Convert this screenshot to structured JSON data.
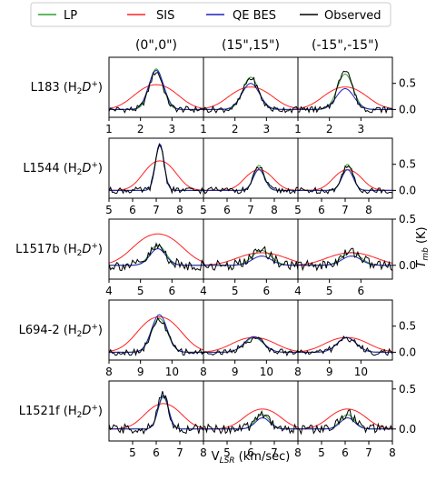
{
  "legend": [
    {
      "label": "LP",
      "color": "#2ca02c"
    },
    {
      "label": "SIS",
      "color": "#ff2020"
    },
    {
      "label": "QE BES",
      "color": "#1f1fbf"
    },
    {
      "label": "Observed",
      "color": "#000000"
    }
  ],
  "column_titles": [
    "(0\",0\")",
    "(15\",15\")",
    "(-15\",-15\")"
  ],
  "xlabel_main": "V",
  "xlabel_sub": "LSR",
  "xlabel_tail": " (km/sec)",
  "ylabel_main": "T",
  "ylabel_sub": "mb",
  "ylabel_tail": " (K)",
  "chart_data": [
    {
      "type": "line",
      "name": "L183 (H2D+)",
      "label_main": "L183 (H",
      "label_tail": "D",
      "label_close": ")",
      "xlim": [
        1,
        4
      ],
      "ylim": [
        -0.15,
        1.0
      ],
      "xticks": [
        1,
        2,
        3
      ],
      "yticks": [
        0.0,
        0.5
      ],
      "ytick_labels": [
        "0.0",
        "0.5"
      ],
      "series": [
        {
          "name": "LP",
          "color": "#2ca02c",
          "x": [
            2.5,
            2.5,
            2.5
          ],
          "y": [
            0.78,
            0.62,
            0.68
          ],
          "sigma": [
            0.22,
            0.25,
            0.25
          ]
        },
        {
          "name": "SIS",
          "color": "#ff2020",
          "x": [
            2.5,
            2.5,
            2.5
          ],
          "y": [
            0.42,
            0.38,
            0.38
          ],
          "sigma": [
            0.8,
            0.8,
            0.8
          ]
        },
        {
          "name": "QE BES",
          "color": "#1f1fbf",
          "x": [
            2.5,
            2.5,
            2.5
          ],
          "y": [
            0.75,
            0.5,
            0.4
          ],
          "sigma": [
            0.24,
            0.28,
            0.28
          ]
        },
        {
          "name": "Observed",
          "color": "#000000",
          "x": [
            2.5,
            2.5,
            2.5
          ],
          "y": [
            0.72,
            0.6,
            0.78
          ],
          "sigma": [
            0.22,
            0.24,
            0.22
          ]
        }
      ]
    },
    {
      "type": "line",
      "name": "L1544 (H2D+)",
      "label_main": "L1544 (H",
      "label_tail": "D",
      "label_close": ")",
      "xlim": [
        5,
        9
      ],
      "ylim": [
        -0.15,
        1.0
      ],
      "xticks": [
        5,
        6,
        7,
        8
      ],
      "yticks": [
        0.0,
        0.5
      ],
      "ytick_labels": [
        "0.0",
        "0.5"
      ],
      "series": [
        {
          "name": "LP",
          "color": "#2ca02c",
          "x": [
            7.15,
            7.35,
            7.1
          ],
          "y": [
            0.88,
            0.48,
            0.5
          ],
          "sigma": [
            0.18,
            0.22,
            0.22
          ]
        },
        {
          "name": "SIS",
          "color": "#ff2020",
          "x": [
            7.15,
            7.35,
            7.1
          ],
          "y": [
            0.5,
            0.35,
            0.35
          ],
          "sigma": [
            0.8,
            0.7,
            0.7
          ]
        },
        {
          "name": "QE BES",
          "color": "#1f1fbf",
          "x": [
            7.15,
            7.35,
            7.1
          ],
          "y": [
            0.9,
            0.4,
            0.4
          ],
          "sigma": [
            0.18,
            0.24,
            0.24
          ]
        },
        {
          "name": "Observed",
          "color": "#000000",
          "x": [
            7.15,
            7.35,
            7.1
          ],
          "y": [
            0.88,
            0.45,
            0.5
          ],
          "sigma": [
            0.18,
            0.22,
            0.22
          ]
        }
      ]
    },
    {
      "type": "line",
      "name": "L1517b (H2D+)",
      "label_main": "L1517b (H",
      "label_tail": "D",
      "label_close": ")",
      "xlim": [
        4,
        7
      ],
      "ylim": [
        -0.15,
        0.5
      ],
      "xticks": [
        4,
        5,
        6
      ],
      "yticks": [
        0.0,
        0.5
      ],
      "ytick_labels": [
        "0.0",
        "0.5"
      ],
      "series": [
        {
          "name": "LP",
          "color": "#2ca02c",
          "x": [
            5.55,
            5.85,
            5.7
          ],
          "y": [
            0.22,
            0.16,
            0.14
          ],
          "sigma": [
            0.25,
            0.3,
            0.3
          ]
        },
        {
          "name": "SIS",
          "color": "#ff2020",
          "x": [
            5.55,
            5.85,
            5.7
          ],
          "y": [
            0.3,
            0.12,
            0.12
          ],
          "sigma": [
            0.9,
            0.9,
            0.9
          ]
        },
        {
          "name": "QE BES",
          "color": "#1f1fbf",
          "x": [
            5.55,
            5.85,
            5.7
          ],
          "y": [
            0.18,
            0.1,
            0.1
          ],
          "sigma": [
            0.25,
            0.3,
            0.3
          ]
        },
        {
          "name": "Observed",
          "color": "#000000",
          "x": [
            5.55,
            5.85,
            5.7
          ],
          "y": [
            0.2,
            0.16,
            0.15
          ],
          "sigma": [
            0.25,
            0.3,
            0.3
          ]
        }
      ]
    },
    {
      "type": "line",
      "name": "L694-2 (H2D+)",
      "label_main": "L694-2 (H",
      "label_tail": "D",
      "label_close": ")",
      "xlim": [
        8,
        11
      ],
      "ylim": [
        -0.15,
        1.0
      ],
      "xticks": [
        8,
        9,
        10
      ],
      "yticks": [
        0.0,
        0.5
      ],
      "ytick_labels": [
        "0.0",
        "0.5"
      ],
      "series": [
        {
          "name": "LP",
          "color": "#2ca02c",
          "x": [
            9.6,
            9.6,
            9.55
          ],
          "y": [
            0.65,
            0.28,
            0.28
          ],
          "sigma": [
            0.25,
            0.3,
            0.3
          ]
        },
        {
          "name": "SIS",
          "color": "#ff2020",
          "x": [
            9.6,
            9.6,
            9.55
          ],
          "y": [
            0.6,
            0.25,
            0.25
          ],
          "sigma": [
            0.8,
            0.8,
            0.8
          ]
        },
        {
          "name": "QE BES",
          "color": "#1f1fbf",
          "x": [
            9.6,
            9.6,
            9.55
          ],
          "y": [
            0.72,
            0.3,
            0.28
          ],
          "sigma": [
            0.25,
            0.3,
            0.3
          ]
        },
        {
          "name": "Observed",
          "color": "#000000",
          "x": [
            9.6,
            9.6,
            9.55
          ],
          "y": [
            0.62,
            0.27,
            0.27
          ],
          "sigma": [
            0.25,
            0.3,
            0.3
          ]
        }
      ]
    },
    {
      "type": "line",
      "name": "L1521f (H2D+)",
      "label_main": "L1521f (H",
      "label_tail": "D",
      "label_close": ")",
      "xlim": [
        4,
        8
      ],
      "ylim": [
        -0.15,
        0.6
      ],
      "xticks": [
        5,
        6,
        7,
        8
      ],
      "yticks": [
        0.0,
        0.5
      ],
      "ytick_labels": [
        "0.0",
        "0.5"
      ],
      "series": [
        {
          "name": "LP",
          "color": "#2ca02c",
          "x": [
            6.3,
            6.5,
            6.1
          ],
          "y": [
            0.4,
            0.18,
            0.18
          ],
          "sigma": [
            0.22,
            0.3,
            0.3
          ]
        },
        {
          "name": "SIS",
          "color": "#ff2020",
          "x": [
            6.3,
            6.5,
            6.1
          ],
          "y": [
            0.28,
            0.22,
            0.22
          ],
          "sigma": [
            0.9,
            0.9,
            0.9
          ]
        },
        {
          "name": "QE BES",
          "color": "#1f1fbf",
          "x": [
            6.3,
            6.5,
            6.1
          ],
          "y": [
            0.42,
            0.14,
            0.14
          ],
          "sigma": [
            0.22,
            0.3,
            0.3
          ]
        },
        {
          "name": "Observed",
          "color": "#000000",
          "x": [
            6.3,
            6.5,
            6.1
          ],
          "y": [
            0.45,
            0.2,
            0.2
          ],
          "sigma": [
            0.22,
            0.3,
            0.3
          ]
        }
      ]
    }
  ]
}
